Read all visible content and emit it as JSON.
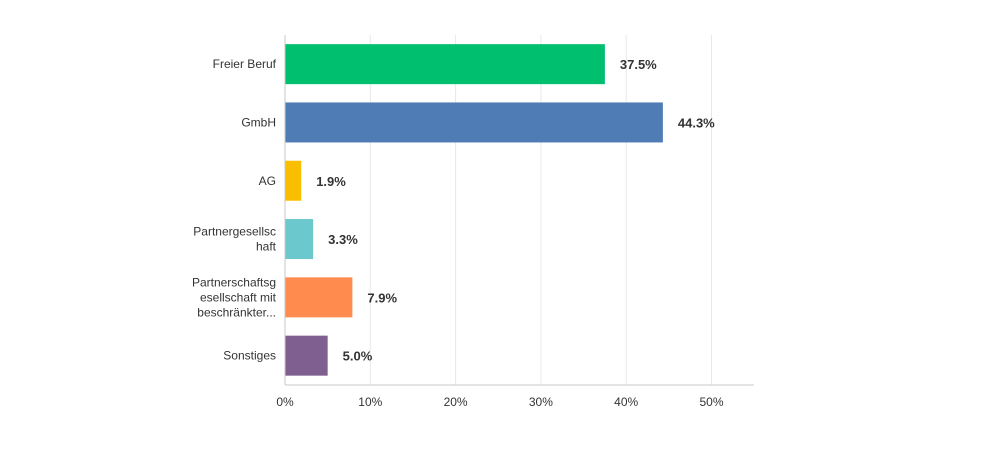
{
  "chart_data": {
    "type": "bar",
    "orientation": "horizontal",
    "categories": [
      [
        "Freier Beruf"
      ],
      [
        "GmbH"
      ],
      [
        "AG"
      ],
      [
        "Partnergesellsc",
        "haft"
      ],
      [
        "Partnerschaftsg",
        "esellschaft mit",
        "beschränkter..."
      ],
      [
        "Sonstiges"
      ]
    ],
    "values": [
      37.5,
      44.3,
      1.9,
      3.3,
      7.9,
      5.0
    ],
    "value_labels": [
      "37.5%",
      "44.3%",
      "1.9%",
      "3.3%",
      "7.9%",
      "5.0%"
    ],
    "colors": [
      "#00bf6f",
      "#507cb6",
      "#f9be00",
      "#6bc8cd",
      "#ff8b4f",
      "#7f5f90"
    ],
    "xlim": [
      0,
      55
    ],
    "xticks": [
      0,
      10,
      20,
      30,
      40,
      50
    ],
    "xtick_labels": [
      "0%",
      "10%",
      "20%",
      "30%",
      "40%",
      "50%"
    ],
    "grid": true
  }
}
